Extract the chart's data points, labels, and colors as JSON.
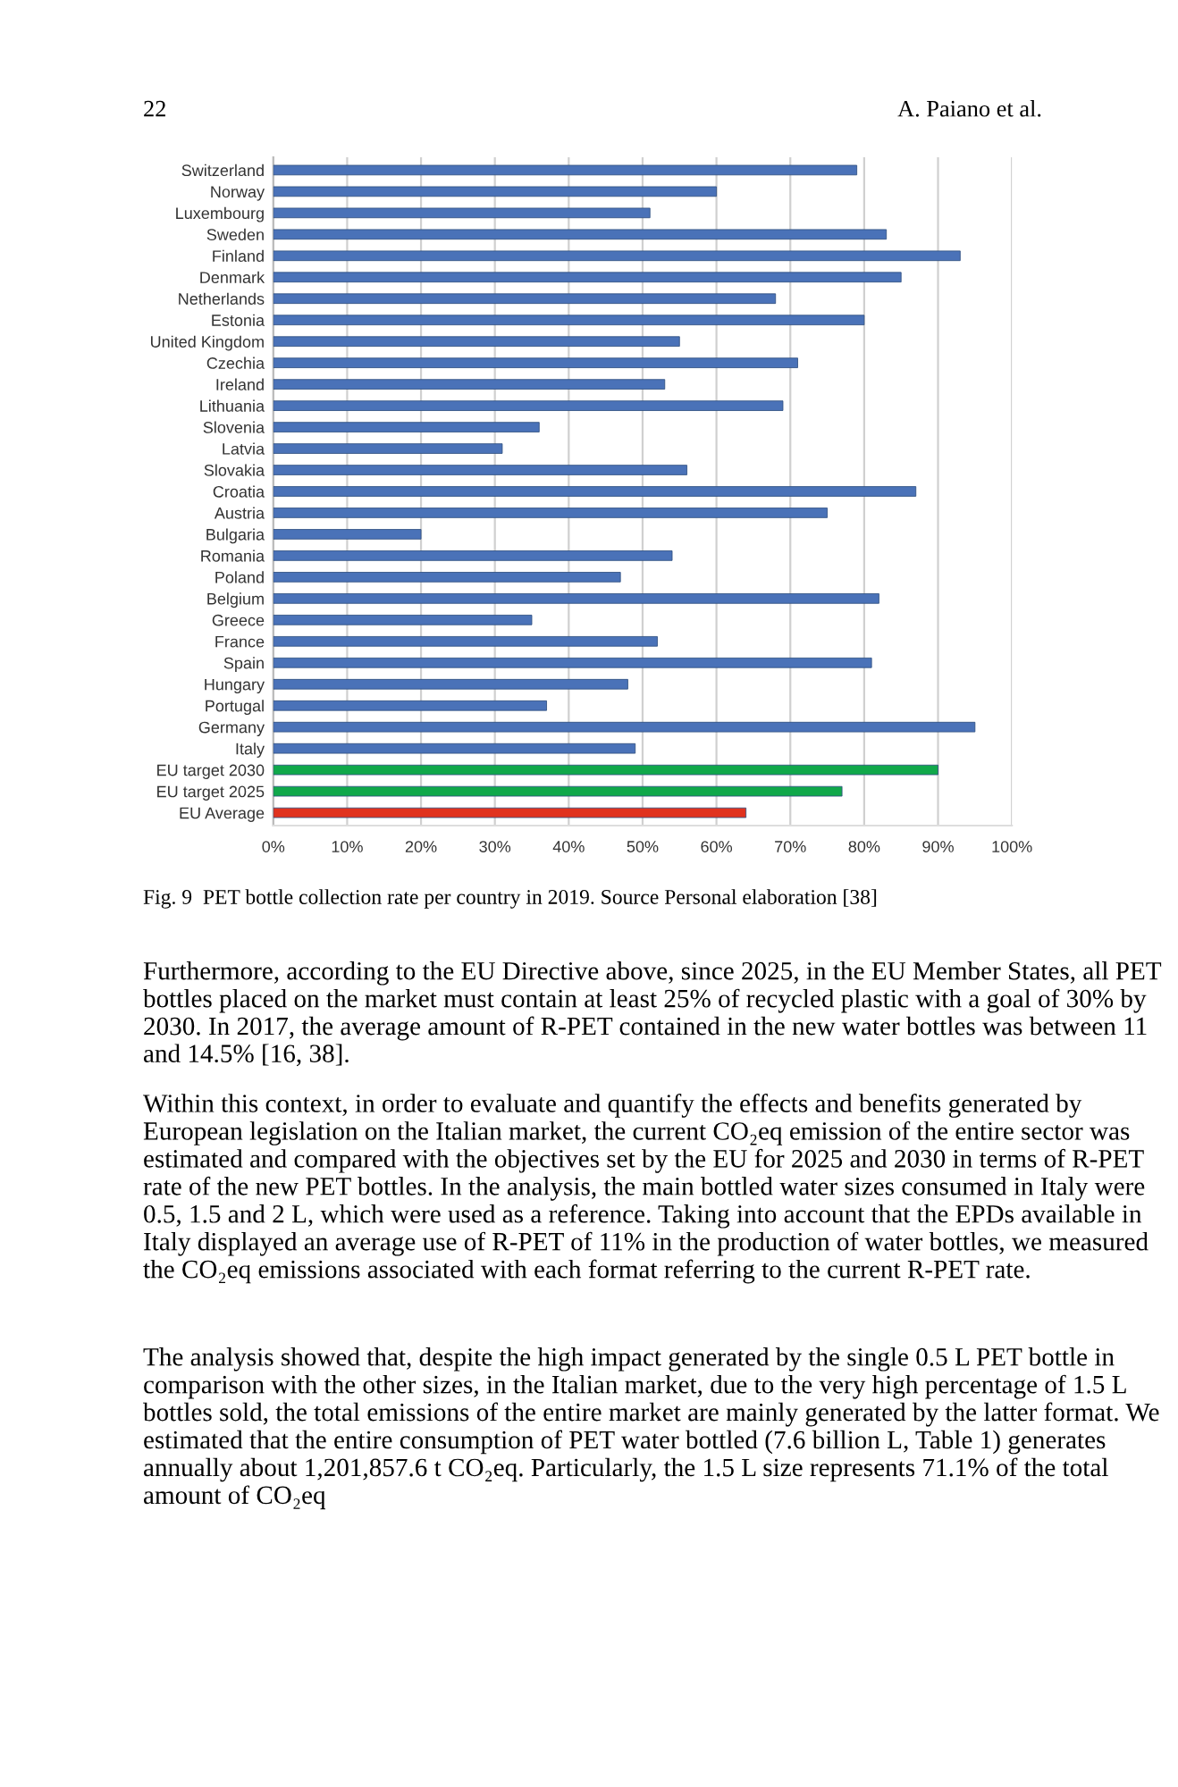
{
  "chart_data": {
    "type": "bar",
    "orientation": "horizontal",
    "categories": [
      "Switzerland",
      "Norway",
      "Luxembourg",
      "Sweden",
      "Finland",
      "Denmark",
      "Netherlands",
      "Estonia",
      "United Kingdom",
      "Czechia",
      "Ireland",
      "Lithuania",
      "Slovenia",
      "Latvia",
      "Slovakia",
      "Croatia",
      "Austria",
      "Bulgaria",
      "Romania",
      "Poland",
      "Belgium",
      "Greece",
      "France",
      "Spain",
      "Hungary",
      "Portugal",
      "Germany",
      "Italy",
      "EU target 2030",
      "EU target 2025",
      "EU Average"
    ],
    "values": [
      79,
      60,
      51,
      83,
      93,
      85,
      68,
      80,
      55,
      71,
      53,
      69,
      36,
      31,
      56,
      87,
      75,
      20,
      54,
      47,
      82,
      35,
      52,
      81,
      48,
      37,
      95,
      49,
      90,
      77,
      64
    ],
    "colors": [
      "#4a72b8",
      "#4a72b8",
      "#4a72b8",
      "#4a72b8",
      "#4a72b8",
      "#4a72b8",
      "#4a72b8",
      "#4a72b8",
      "#4a72b8",
      "#4a72b8",
      "#4a72b8",
      "#4a72b8",
      "#4a72b8",
      "#4a72b8",
      "#4a72b8",
      "#4a72b8",
      "#4a72b8",
      "#4a72b8",
      "#4a72b8",
      "#4a72b8",
      "#4a72b8",
      "#4a72b8",
      "#4a72b8",
      "#4a72b8",
      "#4a72b8",
      "#4a72b8",
      "#4a72b8",
      "#4a72b8",
      "#10a84a",
      "#10a84a",
      "#e0321e"
    ],
    "xlim": [
      0,
      100
    ],
    "xticks": [
      {
        "value": 0,
        "label": "0%"
      },
      {
        "value": 10,
        "label": "10%"
      },
      {
        "value": 20,
        "label": "20%"
      },
      {
        "value": 30,
        "label": "30%"
      },
      {
        "value": 40,
        "label": "40%"
      },
      {
        "value": 50,
        "label": "50%"
      },
      {
        "value": 60,
        "label": "60%"
      },
      {
        "value": 70,
        "label": "70%"
      },
      {
        "value": 80,
        "label": "80%"
      },
      {
        "value": 90,
        "label": "90%"
      },
      {
        "value": 100,
        "label": "100%"
      }
    ],
    "grid": "x",
    "annotations": [
      "22",
      "A. Paiano et al.",
      "Fig. 9  PET bottle collection rate per country in 2019. Source Personal elaboration [38]",
      "Furthermore, according to the EU Directive above, since 2025, in the EU Member States, all PET bottles placed on the market must contain at least 25% of recycled plastic with a goal of 30% by 2030. In 2017, the average amount of R-PET contained in the new water bottles was between 11 and 14.5% [16, 38].",
      "Within this context, in order to evaluate and quantify the effects and benefits generated by European legislation on the Italian market, the current CO₂eq emission of the entire sector was estimated and compared with the objectives set by the EU for 2025 and 2030 in terms of R-PET rate of the new PET bottles. In the analysis, the main bottled water sizes consumed in Italy were 0.5, 1.5 and 2 L, which were used as a reference. Taking into account that the EPDs available in Italy displayed an average use of R-PET of 11% in the production of water bottles, we measured the CO₂eq emissions associated with each format referring to the current R-PET rate.",
      "The analysis showed that, despite the high impact generated by the single 0.5 L PET bottle in comparison with the other sizes, in the Italian market, due to the very high percentage of 1.5 L bottles sold, the total emissions of the entire market are mainly generated by the latter format. We estimated that the entire consumption of PET water bottled (7.6 billion L, Table 1) generates annually about 1,201,857.6 t CO₂eq. Particularly, the 1.5 L size represents 71.1% of the total amount of CO₂eq"
    ]
  }
}
